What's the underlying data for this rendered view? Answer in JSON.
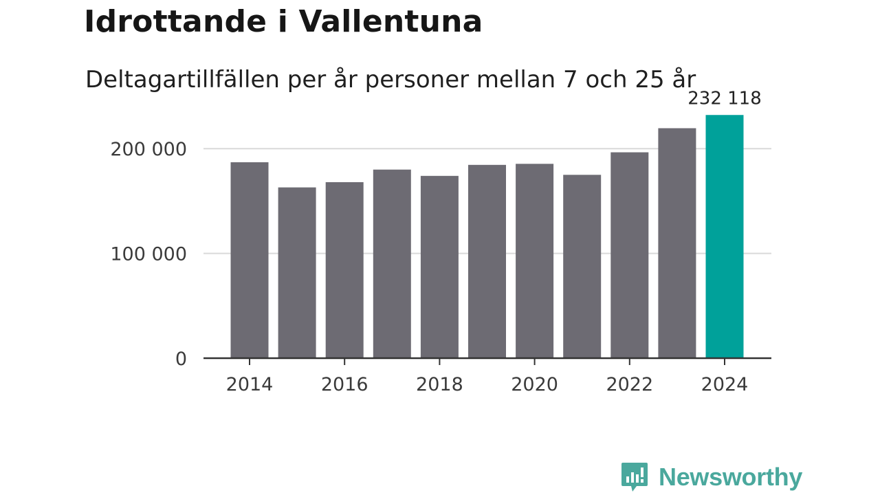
{
  "header": {
    "title": "Idrottande i Vallentuna",
    "subtitle": "Deltagartillfällen per år personer mellan 7 och 25 år"
  },
  "branding": {
    "name": "Newsworthy",
    "logo_icon": "bar-chart-speech-bubble-icon",
    "color": "#4aa89d"
  },
  "colors": {
    "bar": "#6d6b73",
    "highlight": "#00a19a",
    "gridline": "#d9d9d9",
    "axis": "#333333"
  },
  "chart_data": {
    "type": "bar",
    "title": "Idrottande i Vallentuna",
    "subtitle": "Deltagartillfällen per år personer mellan 7 och 25 år",
    "xlabel": "",
    "ylabel": "",
    "categories": [
      "2014",
      "2015",
      "2016",
      "2017",
      "2018",
      "2019",
      "2020",
      "2021",
      "2022",
      "2023",
      "2024"
    ],
    "values": [
      187000,
      163000,
      168000,
      180000,
      174000,
      184500,
      185500,
      175000,
      196500,
      219500,
      232118
    ],
    "highlight_index": 10,
    "highlight_label": "232 118",
    "ylim": [
      0,
      250000
    ],
    "yticks": [
      0,
      100000,
      200000
    ],
    "ytick_labels": [
      "0",
      "100 000",
      "200 000"
    ],
    "xtick_labels": [
      "2014",
      "2016",
      "2018",
      "2020",
      "2022",
      "2024"
    ],
    "grid": true
  }
}
